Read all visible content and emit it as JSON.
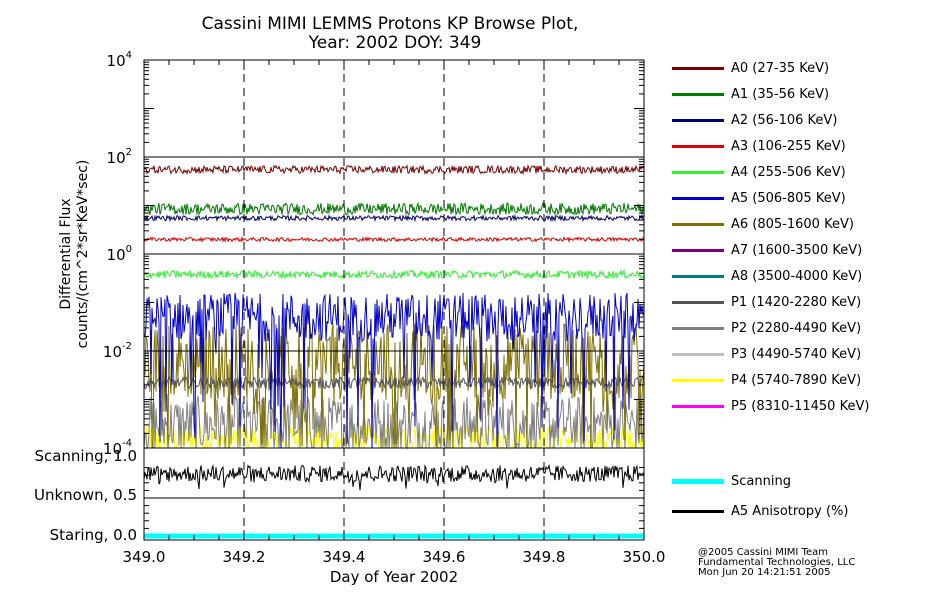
{
  "chart_data": {
    "type": "line",
    "title": "Cassini MIMI LEMMS Protons KP Browse Plot,",
    "subtitle": "Year: 2002 DOY: 349",
    "xlabel": "Day of Year 2002",
    "x_range": [
      349.0,
      350.0
    ],
    "x_ticks": [
      "349.0",
      "349.2",
      "349.4",
      "349.6",
      "349.8",
      "350.0"
    ],
    "flux_panel": {
      "ylabel_line1": "Differential Flux",
      "ylabel_line2": "counts/(cm^2*sr*KeV*sec)",
      "y_scale": "log",
      "ylim": [
        0.0001,
        10000
      ],
      "y_ticks": [
        {
          "base": "10",
          "exp": "4"
        },
        {
          "base": "10",
          "exp": "2"
        },
        {
          "base": "10",
          "exp": "0"
        },
        {
          "base": "10",
          "exp": "-2"
        },
        {
          "base": "10",
          "exp": "-4"
        }
      ],
      "series": [
        {
          "name": "A0 (27-35 KeV)",
          "color": "#7a0000",
          "level": 55,
          "spread": 0.08
        },
        {
          "name": "A1 (35-56 KeV)",
          "color": "#007a00",
          "level": 8.5,
          "spread": 0.12
        },
        {
          "name": "A2 (56-106 KeV)",
          "color": "#00006e",
          "level": 5.5,
          "spread": 0.05
        },
        {
          "name": "A3 (106-255 KeV)",
          "color": "#dd0000",
          "level": 2.0,
          "spread": 0.04
        },
        {
          "name": "A4 (255-506 KeV)",
          "color": "#33ee33",
          "level": 0.38,
          "spread": 0.08
        },
        {
          "name": "A5 (506-805 KeV)",
          "color": "#0000cc",
          "level": 0.05,
          "spread": 0.5
        },
        {
          "name": "A6 (805-1600 KeV)",
          "color": "#807000",
          "level": 0.006,
          "spread": 0.8
        },
        {
          "name": "A7 (1600-3500 KeV)",
          "color": "#7a007a",
          "level": null,
          "spread": 0
        },
        {
          "name": "A8 (3500-4000 KeV)",
          "color": "#007a7a",
          "level": null,
          "spread": 0
        },
        {
          "name": "P1 (1420-2280 KeV)",
          "color": "#555555",
          "level": 0.0022,
          "spread": 0.12
        },
        {
          "name": "P2 (2280-4490 KeV)",
          "color": "#808080",
          "level": 0.0003,
          "spread": 0.6
        },
        {
          "name": "P3 (4490-5740 KeV)",
          "color": "#c0c0c0",
          "level": null,
          "spread": 0
        },
        {
          "name": "P4 (5740-7890 KeV)",
          "color": "#ffff00",
          "level": 0.00015,
          "spread": 0.3
        },
        {
          "name": "P5 (8310-11450 KeV)",
          "color": "#ff00ff",
          "level": null,
          "spread": 0
        }
      ]
    },
    "status_panel": {
      "y_ticks": [
        "Scanning, 1.0",
        "Unknown, 0.5",
        "Staring, 0.0"
      ],
      "ylim": [
        0.0,
        1.0
      ],
      "series": [
        {
          "name": "Scanning",
          "color": "#00ffff",
          "value": 0.0
        },
        {
          "name": "A5 Anisotropy (%)",
          "color": "#000000",
          "value": 0.82
        }
      ]
    },
    "credits": [
      "@2005 Cassini MIMI Team",
      "Fundamental Technologies, LLC",
      "Mon Jun 20 14:21:51 2005"
    ]
  }
}
